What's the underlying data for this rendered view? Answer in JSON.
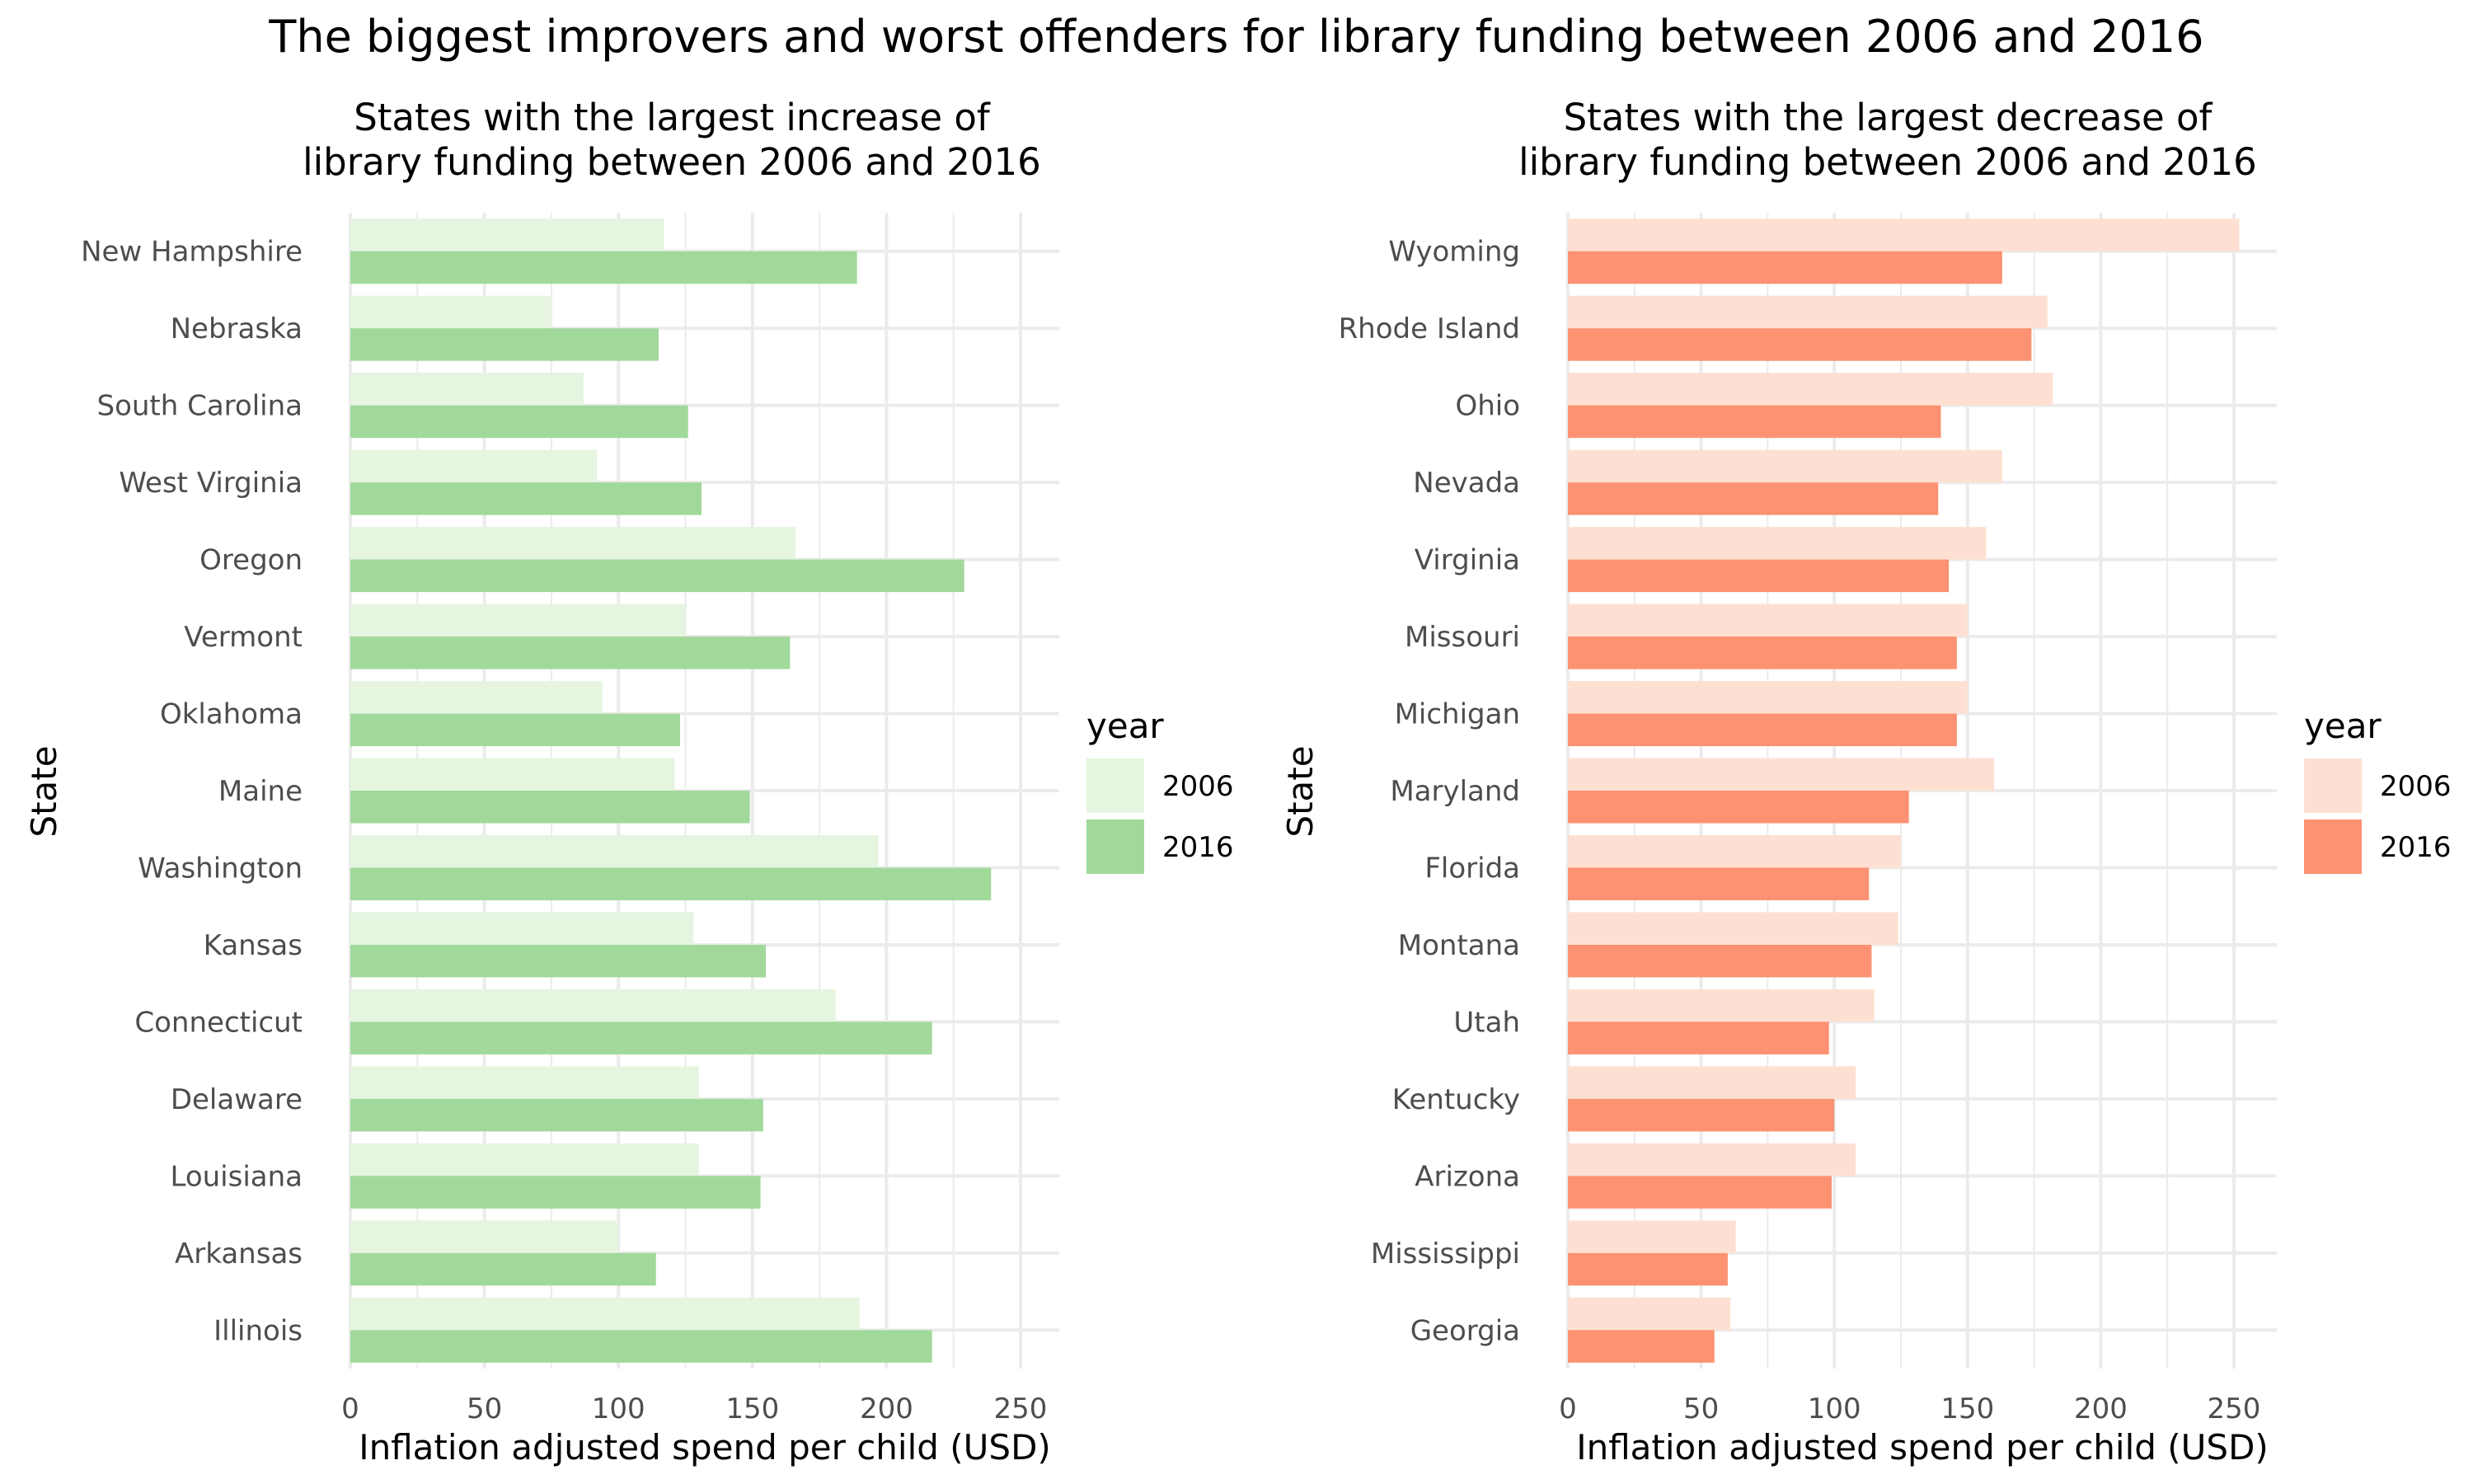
{
  "title": "The biggest improvers and worst offenders for library funding between 2006 and 2016",
  "chart_data": [
    {
      "type": "bar",
      "orientation": "horizontal",
      "title_lines": [
        "States with the largest increase of",
        "library funding between 2006 and 2016"
      ],
      "xlabel": "Inflation adjusted spend per child (USD)",
      "ylabel": "State",
      "xlim": [
        0,
        250
      ],
      "x_ticks": [
        0,
        50,
        100,
        150,
        200,
        250
      ],
      "grid": true,
      "legend": {
        "title": "year",
        "position": "right",
        "labels": [
          "2006",
          "2016"
        ]
      },
      "colors": {
        "2006": "#e5f5e0",
        "2016": "#a1d99b"
      },
      "categories": [
        "New Hampshire",
        "Nebraska",
        "South Carolina",
        "West Virginia",
        "Oregon",
        "Vermont",
        "Oklahoma",
        "Maine",
        "Washington",
        "Kansas",
        "Connecticut",
        "Delaware",
        "Louisiana",
        "Arkansas",
        "Illinois"
      ],
      "series": [
        {
          "name": "2006",
          "values": [
            117,
            75,
            87,
            92,
            166,
            125,
            94,
            121,
            197,
            128,
            181,
            130,
            130,
            100,
            190
          ]
        },
        {
          "name": "2016",
          "values": [
            189,
            115,
            126,
            131,
            229,
            164,
            123,
            149,
            239,
            155,
            217,
            154,
            153,
            114,
            217
          ]
        }
      ]
    },
    {
      "type": "bar",
      "orientation": "horizontal",
      "title_lines": [
        "States with the largest decrease of",
        "library funding between 2006 and 2016"
      ],
      "xlabel": "Inflation adjusted spend per child (USD)",
      "ylabel": "State",
      "xlim": [
        0,
        250
      ],
      "x_ticks": [
        0,
        50,
        100,
        150,
        200,
        250
      ],
      "grid": true,
      "legend": {
        "title": "year",
        "position": "right",
        "labels": [
          "2006",
          "2016"
        ]
      },
      "colors": {
        "2006": "#fee0d2",
        "2016": "#fc9272"
      },
      "categories": [
        "Wyoming",
        "Rhode Island",
        "Ohio",
        "Nevada",
        "Virginia",
        "Missouri",
        "Michigan",
        "Maryland",
        "Florida",
        "Montana",
        "Utah",
        "Kentucky",
        "Arizona",
        "Mississippi",
        "Georgia"
      ],
      "series": [
        {
          "name": "2006",
          "values": [
            252,
            180,
            182,
            163,
            157,
            150,
            150,
            160,
            125,
            124,
            115,
            108,
            108,
            63,
            61
          ]
        },
        {
          "name": "2016",
          "values": [
            163,
            174,
            140,
            139,
            143,
            146,
            146,
            128,
            113,
            114,
            98,
            100,
            99,
            60,
            55
          ]
        }
      ]
    }
  ]
}
